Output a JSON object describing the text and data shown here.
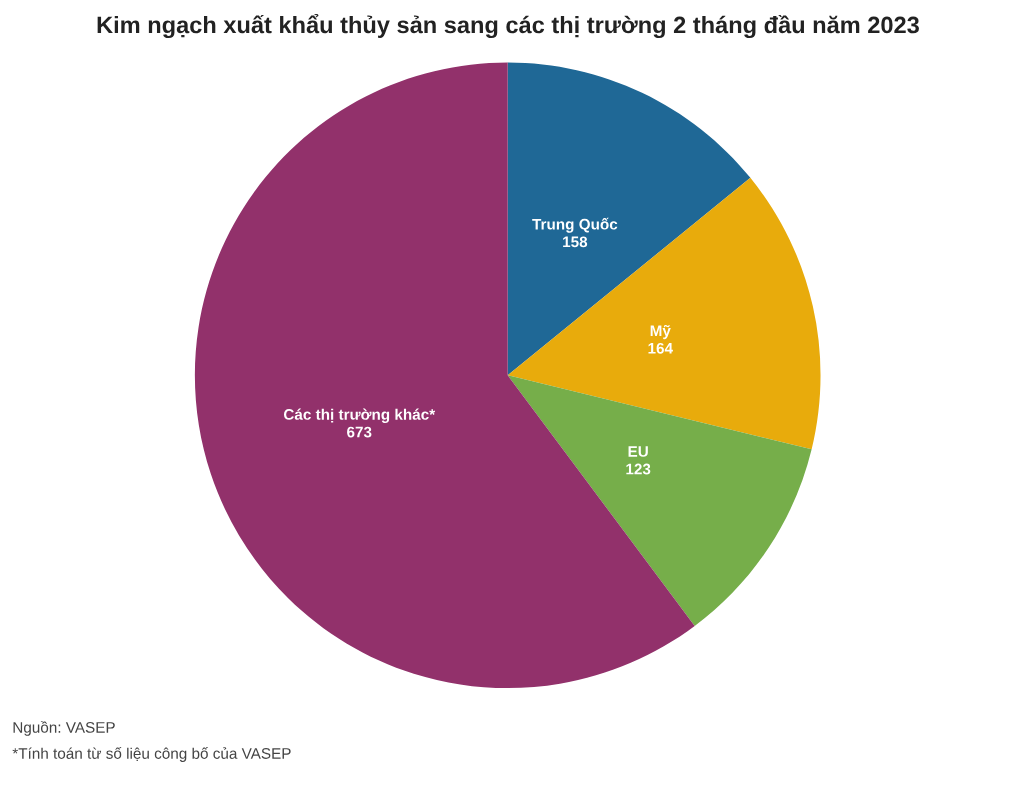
{
  "chart_data": {
    "type": "pie",
    "title": "Kim ngạch xuất khẩu thủy sản sang các thị trường 2 tháng đầu năm 2023",
    "categories": [
      "Trung Quốc",
      "Mỹ",
      "EU",
      "Các thị trường khác*"
    ],
    "values": [
      158,
      164,
      123,
      673
    ],
    "colors": [
      "#1f6896",
      "#e8ab0c",
      "#76ae4a",
      "#92316b"
    ],
    "data_labels": true,
    "annotations": [
      "Nguồn: VASEP",
      "*Tính toán từ số liệu công bố của VASEP"
    ]
  }
}
